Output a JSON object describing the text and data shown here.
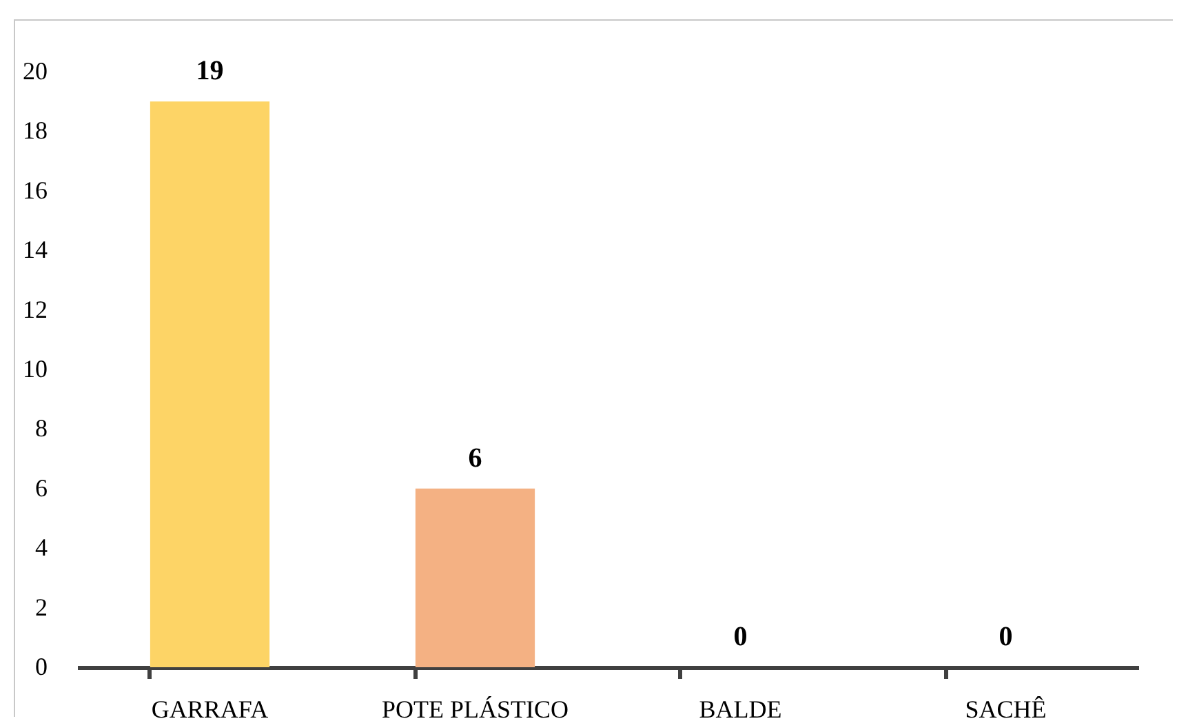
{
  "chart_data": {
    "type": "bar",
    "categories": [
      "GARRAFA",
      "POTE PLÁSTICO",
      "BALDE",
      "SACHÊ"
    ],
    "values": [
      19,
      6,
      0,
      0
    ],
    "colors": [
      "#fdd466",
      "#f4b183",
      "#a9d18e",
      "#9dc3e6"
    ],
    "ylim": [
      0,
      20
    ],
    "yticks": [
      0,
      2,
      4,
      6,
      8,
      10,
      12,
      14,
      16,
      18,
      20
    ],
    "grid": false,
    "data_labels": true
  }
}
